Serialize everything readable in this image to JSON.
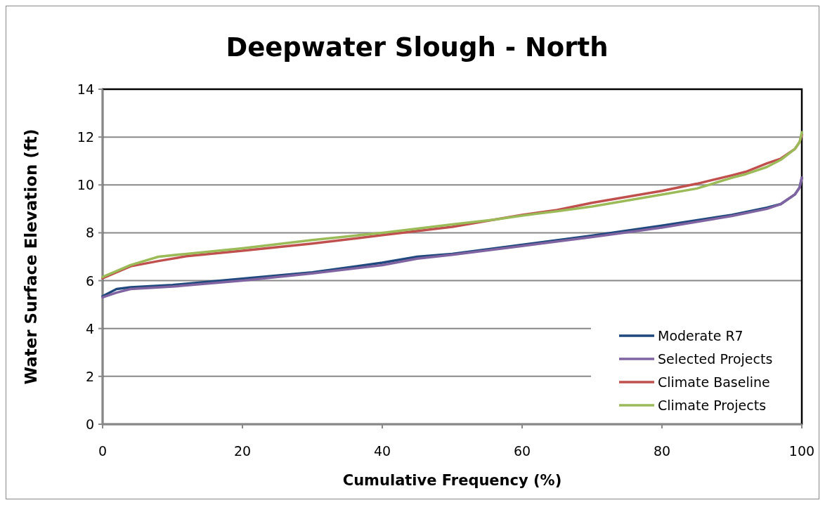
{
  "chart_data": {
    "type": "line",
    "title": "Deepwater Slough - North",
    "xlabel": "Cumulative Frequency (%)",
    "ylabel": "Water Surface Elevation (ft)",
    "xlim": [
      0,
      100
    ],
    "xticks": [
      0,
      20,
      40,
      60,
      80,
      100
    ],
    "ylim": [
      0,
      14
    ],
    "yticks": [
      0,
      2,
      4,
      6,
      8,
      10,
      12,
      14
    ],
    "grid": "y",
    "legend": "bottom right",
    "marker": "none",
    "line_style": "solid",
    "x": [
      0,
      2,
      4,
      10,
      20,
      30,
      40,
      45,
      50,
      60,
      70,
      80,
      90,
      95,
      97,
      99,
      99.7,
      100
    ],
    "series": [
      {
        "name": "Moderate R7",
        "color": "#1f497d",
        "values": [
          5.35,
          5.65,
          5.72,
          5.82,
          6.08,
          6.35,
          6.75,
          7.0,
          7.12,
          7.5,
          7.88,
          8.3,
          8.75,
          9.05,
          9.2,
          9.6,
          9.9,
          10.3
        ]
      },
      {
        "name": "Selected Projects",
        "color": "#8064a2",
        "values": [
          5.3,
          5.5,
          5.65,
          5.75,
          6.0,
          6.3,
          6.65,
          6.92,
          7.08,
          7.45,
          7.82,
          8.22,
          8.7,
          9.0,
          9.2,
          9.6,
          9.9,
          10.3
        ]
      },
      {
        "name": "Climate Baseline",
        "color": "#c0504d",
        "x": [
          0,
          2,
          4,
          8,
          12,
          20,
          30,
          40,
          50,
          56,
          60,
          65,
          70,
          80,
          85,
          90,
          92,
          95,
          97,
          99,
          99.7,
          100
        ],
        "values": [
          6.1,
          6.35,
          6.6,
          6.82,
          7.02,
          7.25,
          7.55,
          7.9,
          8.25,
          8.55,
          8.75,
          8.95,
          9.25,
          9.75,
          10.05,
          10.4,
          10.55,
          10.9,
          11.1,
          11.5,
          11.8,
          12.1
        ]
      },
      {
        "name": "Climate Projects",
        "color": "#9bbb59",
        "x": [
          0,
          2,
          4,
          8,
          12,
          20,
          30,
          40,
          50,
          56,
          60,
          65,
          70,
          80,
          85,
          90,
          92,
          95,
          97,
          99,
          99.7,
          100
        ],
        "values": [
          6.15,
          6.4,
          6.65,
          7.0,
          7.12,
          7.35,
          7.7,
          8.0,
          8.35,
          8.55,
          8.72,
          8.9,
          9.1,
          9.6,
          9.85,
          10.3,
          10.45,
          10.75,
          11.05,
          11.5,
          11.8,
          12.2
        ]
      }
    ]
  }
}
